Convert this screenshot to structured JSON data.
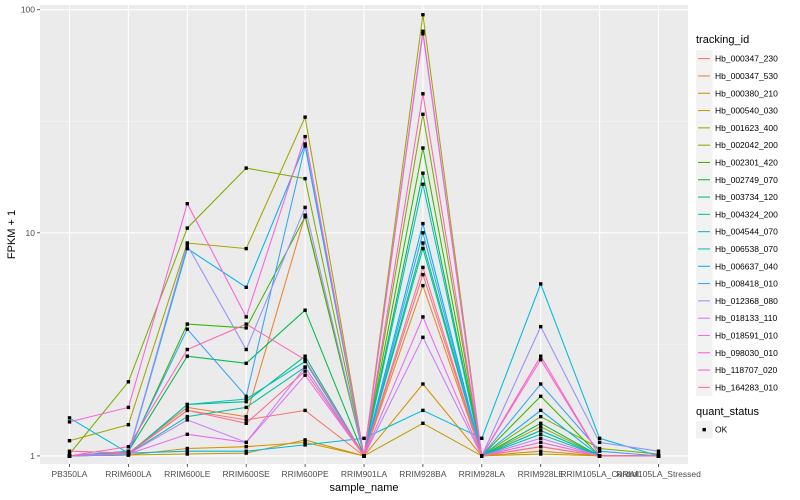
{
  "chart_data": {
    "type": "line",
    "xlabel": "sample_name",
    "ylabel": "FPKM + 1",
    "y_scale": "log10",
    "ylim": [
      0.92,
      105
    ],
    "y_ticks": [
      {
        "value": 1,
        "label": "1"
      },
      {
        "value": 10,
        "label": "10"
      },
      {
        "value": 100,
        "label": "100"
      }
    ],
    "grid": true,
    "legend_position": "right",
    "categories": [
      "PB350LA",
      "RRIM600LA",
      "RRIM600LE",
      "RRIM600SE",
      "RRIM600PE",
      "RRIM901LA",
      "RRIM928BA",
      "RRIM928LA",
      "RRIM928LE",
      "RRIM105LA_Control",
      "RRIM105LA_Stressed"
    ],
    "legend_title": "tracking_id",
    "series": [
      {
        "name": "Hb_000347_230",
        "color": "#F8766D",
        "values": [
          1.0,
          1.02,
          1.6,
          1.45,
          1.6,
          1.0,
          6.5,
          1.0,
          1.1,
          1.0,
          1.0
        ]
      },
      {
        "name": "Hb_000347_530",
        "color": "#EA8331",
        "values": [
          1.0,
          1.03,
          1.65,
          1.5,
          12.0,
          1.0,
          5.8,
          1.0,
          1.15,
          1.0,
          1.0
        ]
      },
      {
        "name": "Hb_000380_210",
        "color": "#D89000",
        "values": [
          1.0,
          1.01,
          1.08,
          1.1,
          1.15,
          1.0,
          2.1,
          1.0,
          1.05,
          1.0,
          1.0
        ]
      },
      {
        "name": "Hb_000540_030",
        "color": "#C09B00",
        "values": [
          1.0,
          1.01,
          1.02,
          1.03,
          1.18,
          1.0,
          1.4,
          1.0,
          1.02,
          1.0,
          1.0
        ]
      },
      {
        "name": "Hb_001623_400",
        "color": "#A3A500",
        "values": [
          1.17,
          1.38,
          9.0,
          8.5,
          33.0,
          1.0,
          95.0,
          1.0,
          1.35,
          1.0,
          1.0
        ]
      },
      {
        "name": "Hb_002042_200",
        "color": "#7CAE00",
        "values": [
          1.02,
          2.15,
          10.5,
          19.5,
          17.5,
          1.0,
          34.0,
          1.0,
          1.5,
          1.08,
          1.02
        ]
      },
      {
        "name": "Hb_002301_420",
        "color": "#39B600",
        "values": [
          1.0,
          1.04,
          3.9,
          3.75,
          11.8,
          1.0,
          24.0,
          1.0,
          1.85,
          1.0,
          1.0
        ]
      },
      {
        "name": "Hb_002749_070",
        "color": "#00BB4E",
        "values": [
          1.0,
          1.05,
          2.8,
          2.6,
          4.5,
          1.0,
          18.5,
          1.0,
          1.4,
          1.0,
          1.0
        ]
      },
      {
        "name": "Hb_003734_120",
        "color": "#00BF7D",
        "values": [
          1.0,
          1.02,
          1.7,
          1.75,
          2.8,
          1.0,
          9.0,
          1.0,
          1.3,
          1.0,
          1.0
        ]
      },
      {
        "name": "Hb_004324_200",
        "color": "#00C1A3",
        "values": [
          1.0,
          1.02,
          1.5,
          1.65,
          2.5,
          1.0,
          8.5,
          1.0,
          1.25,
          1.0,
          1.0
        ]
      },
      {
        "name": "Hb_004544_070",
        "color": "#00BFC4",
        "values": [
          1.0,
          1.01,
          1.7,
          1.8,
          2.65,
          1.0,
          16.5,
          1.0,
          1.3,
          1.0,
          1.0
        ]
      },
      {
        "name": "Hb_006538_070",
        "color": "#00BAE0",
        "values": [
          1.48,
          1.03,
          1.05,
          1.05,
          1.12,
          1.2,
          1.6,
          1.2,
          5.9,
          1.2,
          1.0
        ]
      },
      {
        "name": "Hb_006637_040",
        "color": "#00B0F6",
        "values": [
          1.0,
          1.02,
          8.5,
          5.7,
          25.0,
          1.0,
          11.0,
          1.0,
          1.6,
          1.0,
          1.0
        ]
      },
      {
        "name": "Hb_008418_010",
        "color": "#35A2FF",
        "values": [
          1.0,
          1.05,
          3.7,
          1.85,
          24.5,
          1.0,
          10.0,
          1.0,
          2.1,
          1.05,
          1.0
        ]
      },
      {
        "name": "Hb_012368_080",
        "color": "#9590FF",
        "values": [
          1.0,
          1.03,
          8.8,
          3.0,
          13.0,
          1.0,
          80.0,
          1.0,
          3.8,
          1.15,
          1.05
        ]
      },
      {
        "name": "Hb_018133_110",
        "color": "#C77CFF",
        "values": [
          1.0,
          1.02,
          1.45,
          1.15,
          2.5,
          1.0,
          3.4,
          1.0,
          1.2,
          1.0,
          1.0
        ]
      },
      {
        "name": "Hb_018591_010",
        "color": "#E76BF3",
        "values": [
          1.0,
          1.02,
          1.25,
          1.15,
          2.3,
          1.0,
          4.2,
          1.0,
          1.15,
          1.0,
          1.0
        ]
      },
      {
        "name": "Hb_098030_010",
        "color": "#FA62DB",
        "values": [
          1.42,
          1.65,
          13.5,
          4.2,
          27.0,
          1.0,
          78.0,
          1.0,
          2.7,
          1.0,
          1.0
        ]
      },
      {
        "name": "Hb_118707_020",
        "color": "#FF62BC",
        "values": [
          1.0,
          1.1,
          3.0,
          3.9,
          2.7,
          1.0,
          42.0,
          1.0,
          2.8,
          1.0,
          1.0
        ]
      },
      {
        "name": "Hb_164283_010",
        "color": "#FF6C91",
        "values": [
          1.05,
          1.03,
          1.6,
          1.4,
          2.4,
          1.0,
          7.0,
          1.0,
          1.1,
          1.0,
          1.0
        ]
      }
    ],
    "shape_legend": {
      "title": "quant_status",
      "items": [
        {
          "label": "OK"
        }
      ]
    }
  }
}
